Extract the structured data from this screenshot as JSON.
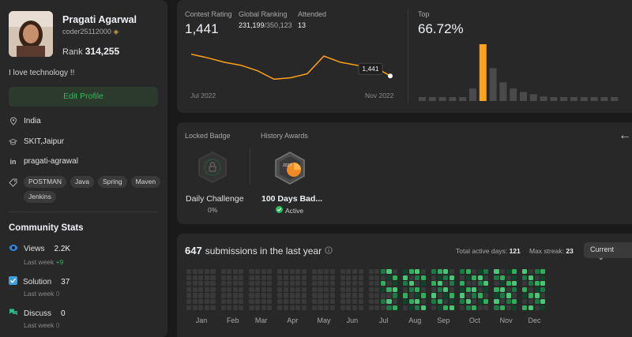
{
  "profile": {
    "name": "Pragati Agarwal",
    "handle": "coder25112000",
    "rank_label": "Rank",
    "rank_value": "314,255",
    "bio": "I love technology !!",
    "edit_label": "Edit Profile",
    "location": "India",
    "school": "SKIT,Jaipur",
    "linkedin": "pragati-agrawal",
    "skills": [
      "POSTMAN",
      "Java",
      "Spring",
      "Maven",
      "Jenkins"
    ]
  },
  "community": {
    "title": "Community Stats",
    "stats": [
      {
        "icon": "eye-icon",
        "label": "Views",
        "value": "2.2K",
        "sub_label": "Last week",
        "sub_value": "+9",
        "color": "#2f86de"
      },
      {
        "icon": "check-square-icon",
        "label": "Solution",
        "value": "37",
        "sub_label": "Last week",
        "sub_value": "0",
        "color": "#3e9ddc"
      },
      {
        "icon": "chat-bubbles-icon",
        "label": "Discuss",
        "value": "0",
        "sub_label": "Last week",
        "sub_value": "0",
        "color": "#2cbb8d"
      }
    ]
  },
  "contest": {
    "rating_label": "Contest Rating",
    "rating_value": "1,441",
    "ranking_label": "Global Ranking",
    "ranking_value": "231,199",
    "ranking_total": "/350,123",
    "attended_label": "Attended",
    "attended_value": "13",
    "tooltip": "1,441",
    "x_start": "Jul 2022",
    "x_end": "Nov 2022",
    "top_label": "Top",
    "top_value": "66.72%",
    "accent": "#ffa116"
  },
  "chart_data": [
    {
      "type": "line",
      "title": "",
      "xlabel": "",
      "ylabel": "",
      "x": [
        "Jul 2022",
        "",
        "",
        "",
        "",
        "",
        "",
        "",
        "",
        "",
        "",
        "",
        "Nov 2022"
      ],
      "series": [
        {
          "values": [
            1500,
            1490,
            1478,
            1470,
            1455,
            1432,
            1436,
            1447,
            1495,
            1478,
            1470,
            1467,
            1441
          ]
        }
      ],
      "highlight": "1,441"
    },
    {
      "type": "bar",
      "title": "",
      "xlabel": "",
      "ylabel": "",
      "values": [
        2,
        2,
        2,
        3,
        6,
        22,
        100,
        58,
        33,
        22,
        16,
        12,
        8,
        6,
        4,
        3,
        2,
        2,
        2,
        2
      ],
      "highlight_index": 6
    },
    {
      "type": "heatmap",
      "title": "",
      "months": [
        "Jan",
        "Feb",
        "Mar",
        "Apr",
        "May",
        "Jun",
        "Jul",
        "Aug",
        "Sep",
        "Oct",
        "Nov",
        "Dec"
      ],
      "weeks_per_month": [
        5,
        4,
        4,
        5,
        4,
        4,
        5,
        4,
        4,
        5,
        4,
        4
      ],
      "active_from_week": 28,
      "scale": [
        "#393939",
        "#0e4429",
        "#1b7a44",
        "#2eaf5c",
        "#4ac776"
      ]
    }
  ],
  "badges": {
    "locked_label": "Locked Badge",
    "locked_name": "Daily Challenge",
    "locked_progress": "0%",
    "history_label": "History Awards",
    "award_name": "100 Days Bad...",
    "award_status": "Active",
    "award_year": "2022"
  },
  "submissions": {
    "count": "647",
    "label": "submissions in the last year",
    "active_days_label": "Total active days:",
    "active_days": "121",
    "streak_label": "Max streak:",
    "streak": "23",
    "select_value": "Current"
  }
}
